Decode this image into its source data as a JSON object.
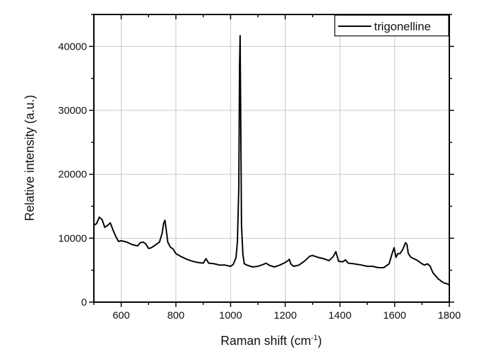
{
  "chart_data": {
    "type": "line",
    "title": "",
    "xlabel": "Raman shift (cm-1)",
    "xlabel_main": "Raman shift (cm",
    "xlabel_sup": "-1",
    "xlabel_end": ")",
    "ylabel": "Relative intensity (a.u.)",
    "xlim": [
      500,
      1800
    ],
    "ylim": [
      0,
      45000
    ],
    "grid": true,
    "legend_position": "top-right",
    "x_ticks": [
      600,
      800,
      1000,
      1200,
      1400,
      1600,
      1800
    ],
    "x_tick_labels": [
      "600",
      "800",
      "1000",
      "1200",
      "1400",
      "1600",
      "1800"
    ],
    "y_ticks": [
      0,
      10000,
      20000,
      30000,
      40000
    ],
    "y_tick_labels": [
      "0",
      "10000",
      "20000",
      "30000",
      "40000"
    ],
    "series": [
      {
        "name": "trigonelline",
        "color": "#000000",
        "x": [
          500,
          510,
          520,
          530,
          540,
          550,
          560,
          570,
          580,
          590,
          600,
          620,
          640,
          660,
          670,
          680,
          690,
          700,
          710,
          720,
          730,
          740,
          750,
          755,
          760,
          765,
          770,
          780,
          790,
          800,
          820,
          840,
          860,
          880,
          900,
          910,
          920,
          940,
          960,
          980,
          1000,
          1010,
          1020,
          1025,
          1030,
          1033,
          1035,
          1037,
          1040,
          1045,
          1050,
          1060,
          1080,
          1100,
          1120,
          1130,
          1140,
          1160,
          1180,
          1200,
          1210,
          1215,
          1220,
          1230,
          1250,
          1270,
          1290,
          1300,
          1320,
          1340,
          1360,
          1375,
          1385,
          1395,
          1410,
          1420,
          1430,
          1450,
          1480,
          1500,
          1520,
          1540,
          1560,
          1580,
          1590,
          1598,
          1605,
          1612,
          1620,
          1630,
          1640,
          1645,
          1650,
          1660,
          1680,
          1700,
          1710,
          1720,
          1730,
          1740,
          1760,
          1780,
          1790,
          1800
        ],
        "y": [
          12000,
          12300,
          13300,
          12900,
          11700,
          12000,
          12400,
          11300,
          10300,
          9500,
          9600,
          9400,
          9000,
          8800,
          9300,
          9400,
          9100,
          8400,
          8500,
          8800,
          9100,
          9400,
          10800,
          12300,
          12800,
          11200,
          9400,
          8600,
          8300,
          7600,
          7100,
          6700,
          6400,
          6200,
          6100,
          6800,
          6100,
          6000,
          5800,
          5800,
          5600,
          5900,
          7000,
          9500,
          18000,
          37000,
          41700,
          30000,
          12000,
          7500,
          6000,
          5800,
          5500,
          5600,
          5900,
          6100,
          5800,
          5500,
          5800,
          6200,
          6500,
          6700,
          6000,
          5600,
          5800,
          6400,
          7200,
          7300,
          7000,
          6800,
          6500,
          7100,
          7900,
          6400,
          6300,
          6600,
          6100,
          6000,
          5800,
          5600,
          5600,
          5400,
          5400,
          6000,
          7500,
          8500,
          7000,
          7600,
          7600,
          8300,
          9300,
          9000,
          7600,
          7000,
          6600,
          6000,
          5800,
          6000,
          5600,
          4600,
          3600,
          3000,
          2900,
          2700
        ]
      }
    ]
  }
}
